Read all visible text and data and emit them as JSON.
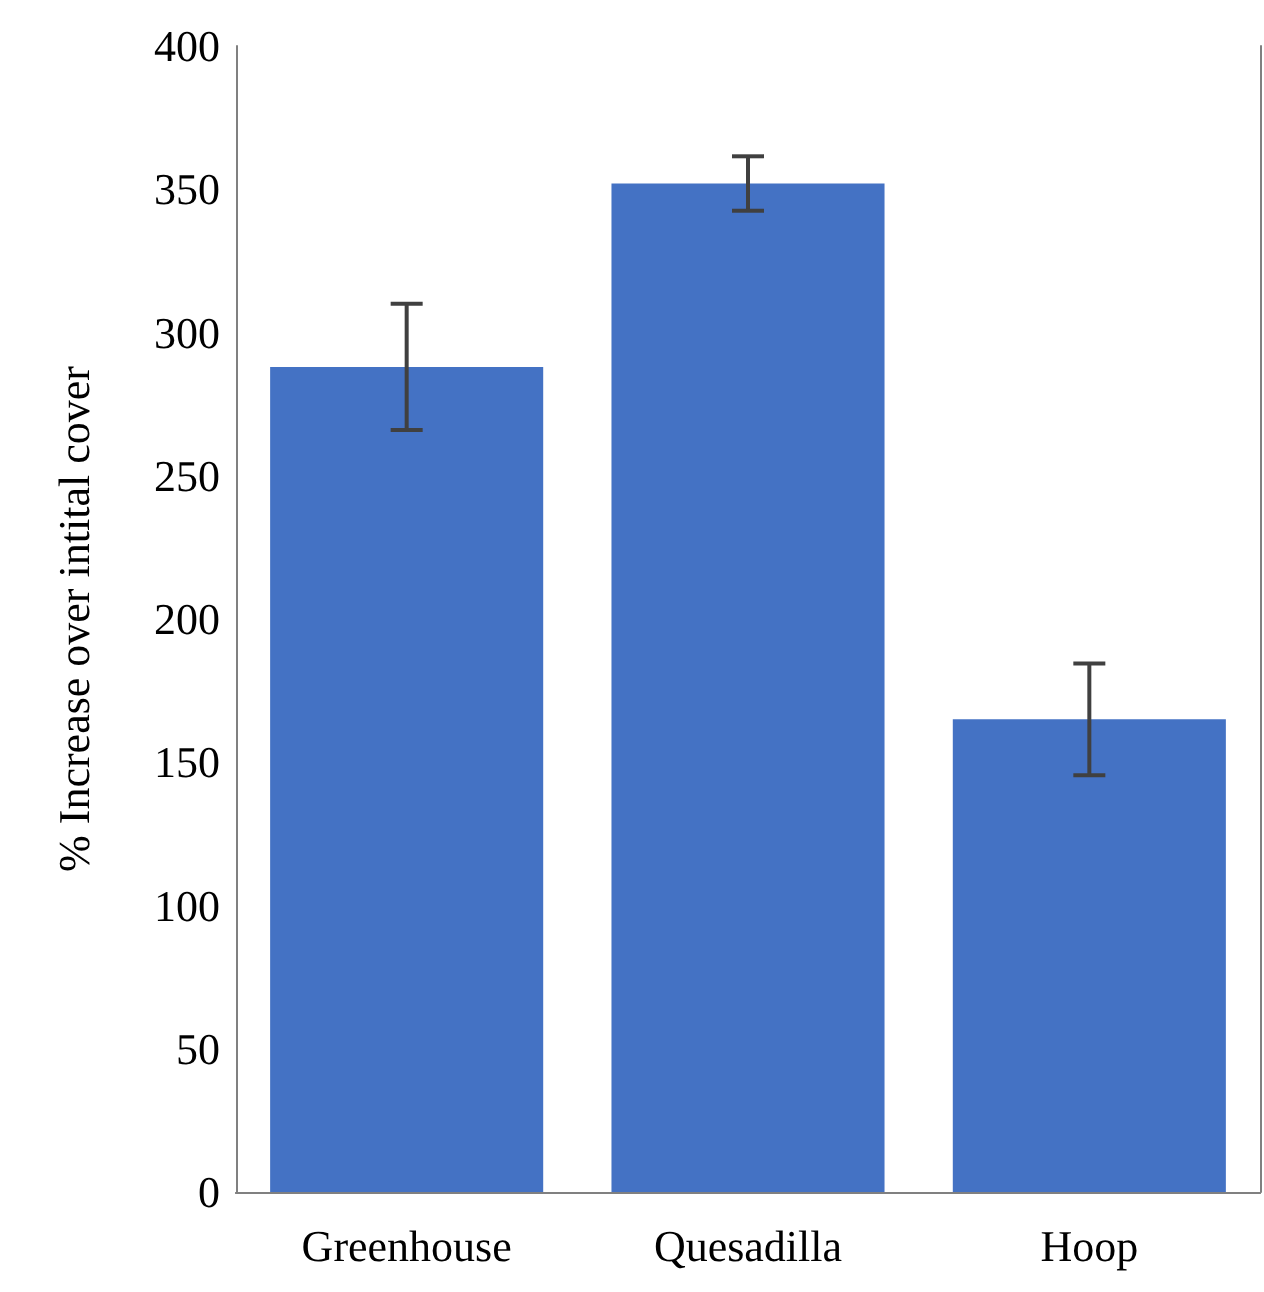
{
  "chart_data": {
    "type": "bar",
    "ylabel": "% Increase over intital cover",
    "categories": [
      "Greenhouse",
      "Quesadilla",
      "Hoop"
    ],
    "values": [
      288,
      352,
      165
    ],
    "errors": [
      22,
      9.5,
      19.5
    ],
    "color": "#4472c4",
    "ylim": [
      0,
      400
    ],
    "yticks": [
      0,
      50,
      100,
      150,
      200,
      250,
      300,
      350,
      400
    ],
    "grid": false
  }
}
